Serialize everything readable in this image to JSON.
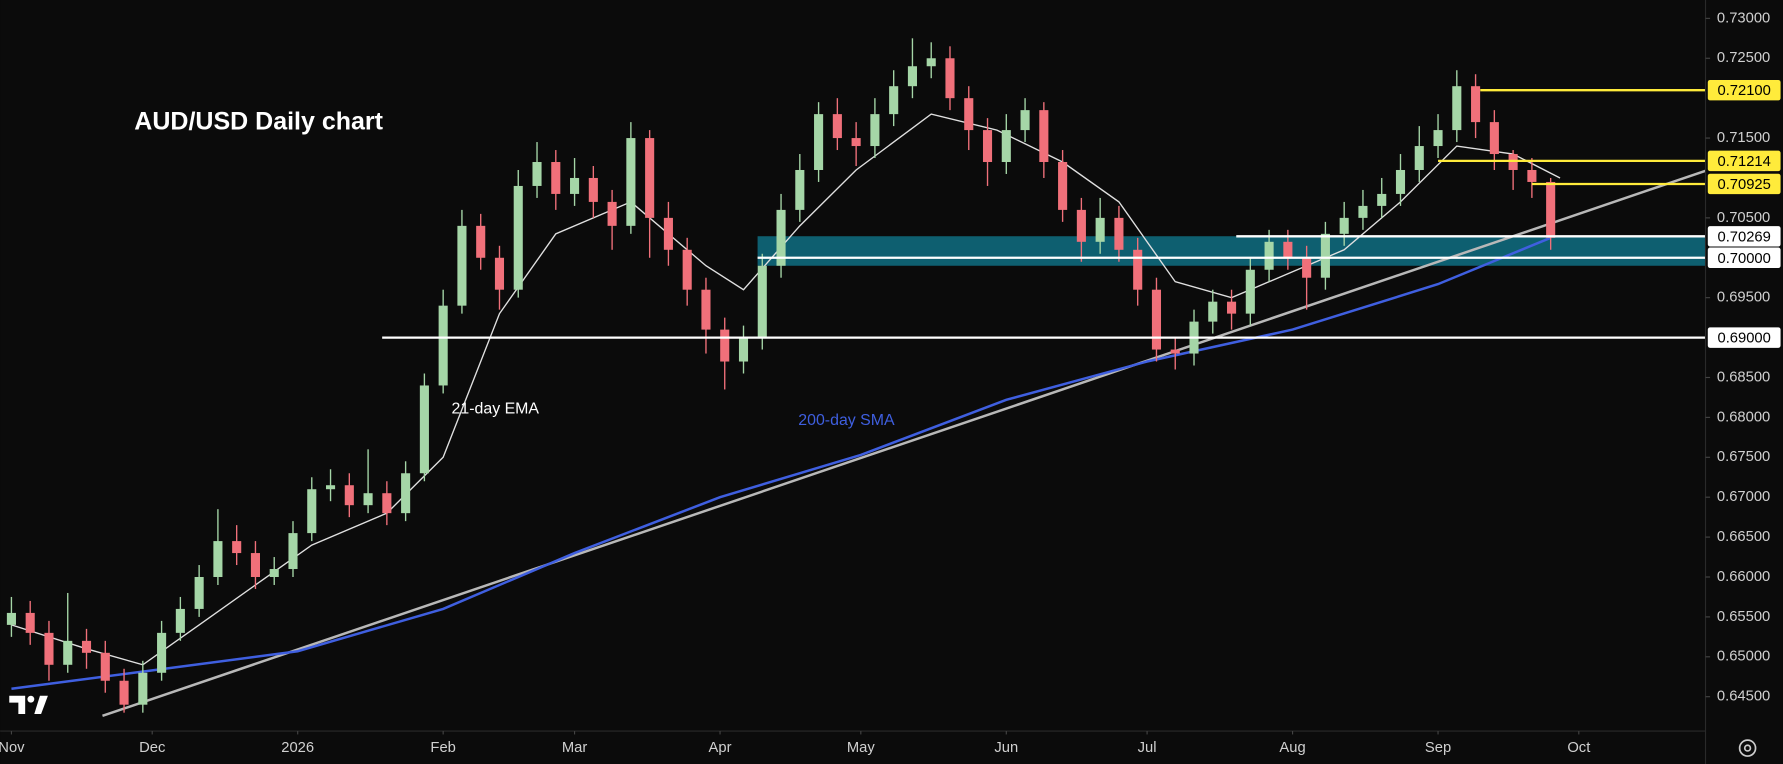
{
  "chart_data": {
    "type": "candlestick",
    "title": "AUD/USD Daily chart",
    "up_color": "#a5d6a7",
    "down_color": "#f0707a",
    "background": "#0b0b0b",
    "xlim": [
      -2.4,
      361
    ],
    "ylim": [
      0.6407,
      0.7323
    ],
    "xticks": [
      {
        "value": 0,
        "label": "Nov"
      },
      {
        "value": 30,
        "label": "Dec"
      },
      {
        "value": 61,
        "label": "2026"
      },
      {
        "value": 92,
        "label": "Feb"
      },
      {
        "value": 120,
        "label": "Mar"
      },
      {
        "value": 151,
        "label": "Apr"
      },
      {
        "value": 181,
        "label": "May"
      },
      {
        "value": 212,
        "label": "Jun"
      },
      {
        "value": 242,
        "label": "Jul"
      },
      {
        "value": 273,
        "label": "Aug"
      },
      {
        "value": 304,
        "label": "Sep"
      },
      {
        "value": 334,
        "label": "Oct"
      }
    ],
    "yticks": [
      {
        "value": 0.73,
        "label": "0.73000"
      },
      {
        "value": 0.725,
        "label": "0.72500"
      },
      {
        "value": 0.715,
        "label": "0.71500"
      },
      {
        "value": 0.705,
        "label": "0.70500"
      },
      {
        "value": 0.695,
        "label": "0.69500"
      },
      {
        "value": 0.685,
        "label": "0.68500"
      },
      {
        "value": 0.68,
        "label": "0.68000"
      },
      {
        "value": 0.675,
        "label": "0.67500"
      },
      {
        "value": 0.67,
        "label": "0.67000"
      },
      {
        "value": 0.665,
        "label": "0.66500"
      },
      {
        "value": 0.66,
        "label": "0.66000"
      },
      {
        "value": 0.655,
        "label": "0.65500"
      },
      {
        "value": 0.65,
        "label": "0.65000"
      },
      {
        "value": 0.645,
        "label": "0.64500"
      }
    ],
    "x": [
      0,
      4,
      8,
      12,
      16,
      20,
      24,
      28,
      32,
      36,
      40,
      44,
      48,
      52,
      56,
      60,
      64,
      68,
      72,
      76,
      80,
      84,
      88,
      92,
      96,
      100,
      104,
      108,
      112,
      116,
      120,
      124,
      128,
      132,
      136,
      140,
      144,
      148,
      152,
      156,
      160,
      164,
      168,
      172,
      176,
      180,
      184,
      188,
      192,
      196,
      200,
      204,
      208,
      212,
      216,
      220,
      224,
      228,
      232,
      236,
      240,
      244,
      248,
      252,
      256,
      260,
      264,
      268,
      272,
      276,
      280,
      284,
      288,
      292,
      296,
      300,
      304,
      308,
      312,
      316,
      320,
      324,
      328
    ],
    "open": [
      0.654,
      0.6555,
      0.653,
      0.649,
      0.652,
      0.6505,
      0.647,
      0.644,
      0.648,
      0.653,
      0.656,
      0.66,
      0.6645,
      0.663,
      0.66,
      0.661,
      0.6655,
      0.671,
      0.6715,
      0.669,
      0.6705,
      0.668,
      0.673,
      0.684,
      0.694,
      0.704,
      0.7,
      0.696,
      0.709,
      0.712,
      0.708,
      0.71,
      0.707,
      0.704,
      0.715,
      0.705,
      0.701,
      0.696,
      0.691,
      0.687,
      0.69,
      0.699,
      0.706,
      0.711,
      0.718,
      0.715,
      0.714,
      0.718,
      0.7215,
      0.724,
      0.725,
      0.72,
      0.716,
      0.712,
      0.716,
      0.7185,
      0.712,
      0.706,
      0.702,
      0.705,
      0.701,
      0.696,
      0.6885,
      0.688,
      0.692,
      0.6945,
      0.693,
      0.6985,
      0.702,
      0.7,
      0.6975,
      0.703,
      0.705,
      0.7065,
      0.708,
      0.711,
      0.714,
      0.716,
      0.7215,
      0.717,
      0.713,
      0.711,
      0.7095
    ],
    "high": [
      0.6575,
      0.657,
      0.6545,
      0.658,
      0.6535,
      0.652,
      0.6485,
      0.6495,
      0.6545,
      0.6575,
      0.6615,
      0.6685,
      0.6665,
      0.6645,
      0.6625,
      0.667,
      0.6725,
      0.6735,
      0.673,
      0.676,
      0.672,
      0.6745,
      0.6855,
      0.696,
      0.706,
      0.7055,
      0.7015,
      0.711,
      0.7145,
      0.7135,
      0.7125,
      0.7115,
      0.7085,
      0.717,
      0.716,
      0.707,
      0.7025,
      0.6975,
      0.6925,
      0.6915,
      0.7005,
      0.708,
      0.713,
      0.7195,
      0.72,
      0.717,
      0.72,
      0.7235,
      0.7275,
      0.727,
      0.7265,
      0.7215,
      0.7175,
      0.718,
      0.72,
      0.7195,
      0.7135,
      0.7075,
      0.7075,
      0.7065,
      0.7025,
      0.6975,
      0.69,
      0.6935,
      0.696,
      0.696,
      0.7,
      0.7035,
      0.7035,
      0.7015,
      0.7045,
      0.707,
      0.7085,
      0.71,
      0.713,
      0.7165,
      0.718,
      0.7235,
      0.723,
      0.7185,
      0.7135,
      0.7125,
      0.71
    ],
    "low": [
      0.6525,
      0.6515,
      0.647,
      0.648,
      0.6485,
      0.6455,
      0.643,
      0.643,
      0.647,
      0.652,
      0.655,
      0.659,
      0.6615,
      0.6585,
      0.659,
      0.66,
      0.6645,
      0.6695,
      0.6675,
      0.668,
      0.6665,
      0.667,
      0.672,
      0.683,
      0.693,
      0.6985,
      0.6935,
      0.695,
      0.7075,
      0.706,
      0.7065,
      0.705,
      0.701,
      0.703,
      0.7,
      0.699,
      0.694,
      0.688,
      0.6835,
      0.6855,
      0.6885,
      0.6975,
      0.7045,
      0.7095,
      0.7135,
      0.7115,
      0.7125,
      0.7165,
      0.72,
      0.7225,
      0.7185,
      0.7135,
      0.709,
      0.7105,
      0.7145,
      0.71,
      0.7045,
      0.6995,
      0.7005,
      0.6995,
      0.694,
      0.687,
      0.686,
      0.6865,
      0.6905,
      0.691,
      0.6915,
      0.697,
      0.6985,
      0.6935,
      0.696,
      0.7015,
      0.7035,
      0.705,
      0.7065,
      0.7095,
      0.7125,
      0.7145,
      0.715,
      0.711,
      0.7085,
      0.7075,
      0.701
    ],
    "close": [
      0.6555,
      0.653,
      0.649,
      0.652,
      0.6505,
      0.647,
      0.644,
      0.648,
      0.653,
      0.656,
      0.66,
      0.6645,
      0.663,
      0.66,
      0.661,
      0.6655,
      0.671,
      0.6715,
      0.669,
      0.6705,
      0.668,
      0.673,
      0.684,
      0.694,
      0.704,
      0.7,
      0.696,
      0.709,
      0.712,
      0.708,
      0.71,
      0.707,
      0.704,
      0.715,
      0.705,
      0.701,
      0.696,
      0.691,
      0.687,
      0.69,
      0.699,
      0.706,
      0.711,
      0.718,
      0.715,
      0.714,
      0.718,
      0.7215,
      0.724,
      0.725,
      0.72,
      0.716,
      0.712,
      0.716,
      0.7185,
      0.712,
      0.706,
      0.702,
      0.705,
      0.701,
      0.696,
      0.6885,
      0.688,
      0.692,
      0.6945,
      0.693,
      0.6985,
      0.702,
      0.7,
      0.6975,
      0.703,
      0.705,
      0.7065,
      0.708,
      0.711,
      0.714,
      0.716,
      0.7215,
      0.717,
      0.713,
      0.711,
      0.7095,
      0.7025
    ],
    "lines": [
      {
        "label": "21-day EMA",
        "color": "#e0e0e0",
        "x": [
          0,
          16,
          28,
          40,
          52,
          64,
          80,
          92,
          104,
          116,
          132,
          148,
          156,
          168,
          180,
          196,
          210,
          224,
          236,
          248,
          260,
          272,
          284,
          296,
          308,
          320,
          330
        ],
        "values": [
          0.654,
          0.651,
          0.649,
          0.654,
          0.659,
          0.664,
          0.668,
          0.675,
          0.693,
          0.703,
          0.707,
          0.699,
          0.696,
          0.704,
          0.711,
          0.718,
          0.716,
          0.712,
          0.707,
          0.697,
          0.695,
          0.698,
          0.701,
          0.707,
          0.714,
          0.713,
          0.71
        ]
      },
      {
        "label": "200-day SMA",
        "color": "#3f5fe0",
        "x": [
          0,
          30,
          61,
          92,
          120,
          151,
          181,
          212,
          242,
          273,
          304,
          328
        ],
        "values": [
          0.646,
          0.6483,
          0.6507,
          0.656,
          0.663,
          0.67,
          0.6753,
          0.6822,
          0.687,
          0.691,
          0.6967,
          0.7025
        ]
      }
    ],
    "trendline": {
      "color": "#b8b8b8",
      "x": [
        19.4,
        361
      ],
      "values": [
        0.6426,
        0.7109
      ]
    },
    "zone": {
      "low": 0.699,
      "high": 0.7027,
      "start": 159,
      "color": "#0f6f83"
    },
    "levels": [
      {
        "value": 0.721,
        "label": "0.72100",
        "color": "#ffeb3b",
        "start": 313
      },
      {
        "value": 0.71214,
        "label": "0.71214",
        "color": "#ffeb3b",
        "start": 304
      },
      {
        "value": 0.70925,
        "label": "0.70925",
        "color": "#ffeb3b",
        "start": 324
      },
      {
        "value": 0.70269,
        "label": "0.70269",
        "color": "#ffffff",
        "start": 261
      },
      {
        "value": 0.7,
        "label": "0.70000",
        "color": "#ffffff",
        "start": 159
      },
      {
        "value": 0.69,
        "label": "0.69000",
        "color": "#ffffff",
        "start": 79
      }
    ]
  }
}
